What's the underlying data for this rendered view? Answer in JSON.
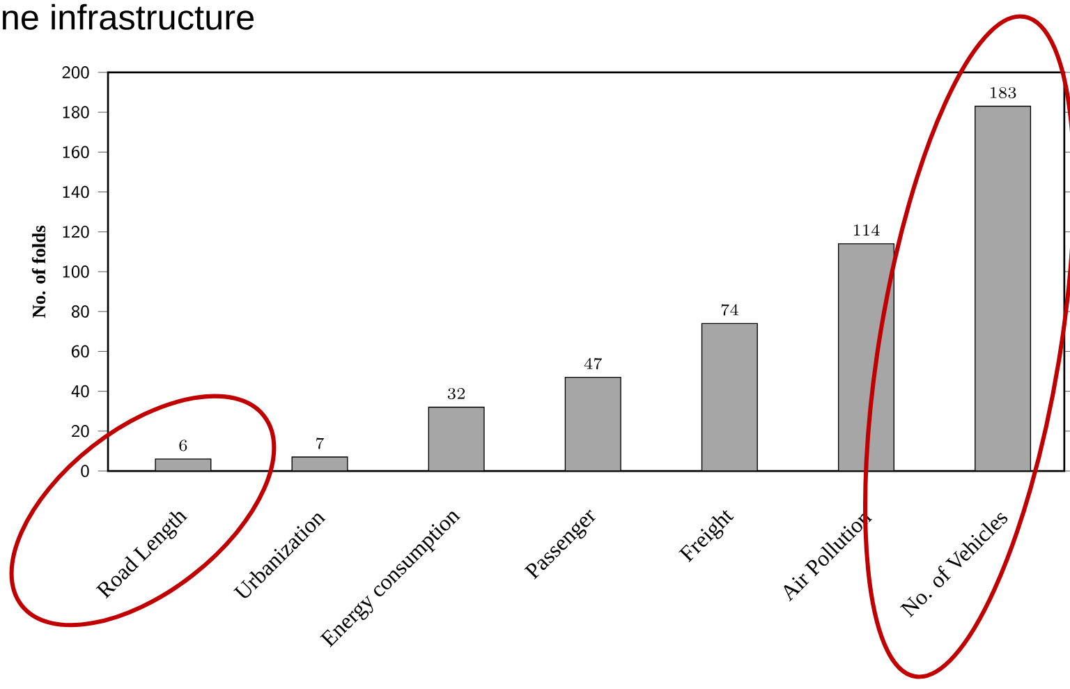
{
  "chart_data": {
    "type": "bar",
    "title": "ne infrastructure",
    "ylabel": "No. of folds",
    "categories": [
      "Road Length",
      "Urbanization",
      "Energy consumption",
      "Passenger",
      "Freight",
      "Air Pollution",
      "No. of Vehicles"
    ],
    "values": [
      6,
      7,
      32,
      47,
      74,
      114,
      183
    ],
    "color": "#a6a6a6",
    "ylim": [
      0,
      200
    ],
    "yticks": [
      0,
      20,
      40,
      60,
      80,
      100,
      120,
      140,
      160,
      180,
      200
    ],
    "data_labels": true
  }
}
